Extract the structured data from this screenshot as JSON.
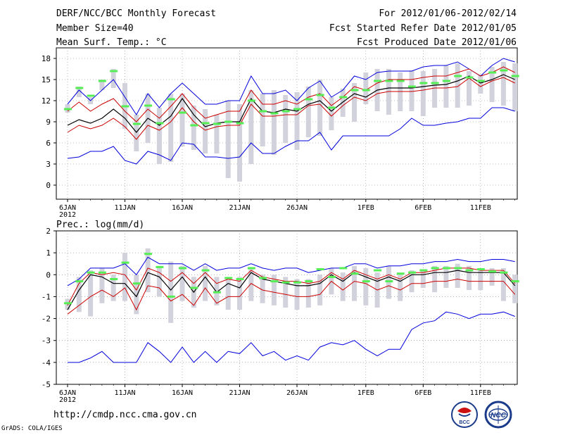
{
  "header": {
    "title": "DERF/NCC/BCC Monthly Forecast",
    "member_size": "Member Size=40",
    "variable": "Mean Surf. Temp.: °C",
    "period": "For 2012/01/06-2012/02/14",
    "fcst_started": "Fcst Started Refer Date 2012/01/05",
    "fcst_produced": "Fcst Produced Date 2012/01/06"
  },
  "footer": {
    "url": "http://cmdp.ncc.cma.gov.cn",
    "credit": "GrADS: COLA/IGES",
    "logo_left_text": "BCC",
    "logo_right_text": "NCC"
  },
  "colors": {
    "max_line": "#0000dd",
    "min_line": "#0000dd",
    "upper_line": "#cc0000",
    "lower_line": "#cc0000",
    "mean_line": "#000000",
    "obs_marker": "#55ee55",
    "box": "#d2d2dc",
    "grid": "#888888"
  },
  "chart_data": [
    {
      "id": "temperature",
      "type": "line",
      "title": "Mean Surf. Temp.: °C",
      "ylim": [
        -2,
        19.5
      ],
      "yticks": [
        0,
        3,
        6,
        9,
        12,
        15,
        18
      ],
      "xtick_labels": [
        "6JAN",
        "11JAN",
        "16JAN",
        "21JAN",
        "26JAN",
        "1FEB",
        "6FEB",
        "11FEB"
      ],
      "xtick_days": [
        0,
        5,
        10,
        15,
        20,
        26,
        31,
        36
      ],
      "year_label": "2012",
      "days": 40,
      "series": [
        {
          "name": "max",
          "values": [
            11.5,
            13.5,
            12,
            13.5,
            15,
            12.5,
            10,
            13,
            11,
            13,
            14.5,
            13,
            11.5,
            11.5,
            12,
            12,
            15.5,
            13,
            13,
            13.5,
            12,
            13.8,
            14.8,
            12.5,
            13.5,
            15.5,
            15,
            16,
            16.2,
            16.2,
            16.2,
            16.8,
            17,
            17,
            17.5,
            16.5,
            15.5,
            17,
            18,
            17.5
          ]
        },
        {
          "name": "upper",
          "values": [
            10.5,
            11.8,
            10.5,
            11.5,
            12.3,
            10.5,
            9,
            10.8,
            9.5,
            11.2,
            13,
            11,
            9.5,
            10,
            10.5,
            10.5,
            13.5,
            11.5,
            11.5,
            12,
            11.5,
            12.5,
            13,
            11.3,
            12.5,
            14,
            13.5,
            14.5,
            15,
            15,
            15,
            15.3,
            15.5,
            15.5,
            16,
            16.5,
            15.5,
            16,
            16.8,
            16
          ]
        },
        {
          "name": "mean",
          "values": [
            8.5,
            9.3,
            8.8,
            9.5,
            10.8,
            9.5,
            7.5,
            9.5,
            8.5,
            9.8,
            12.3,
            10,
            8.3,
            8.8,
            9,
            9,
            12.3,
            10.5,
            10.3,
            10.8,
            10.5,
            11.5,
            12,
            10.5,
            11.8,
            13,
            12.5,
            13.5,
            13.8,
            13.8,
            13.8,
            14,
            14.2,
            14.3,
            14.8,
            15.5,
            14.5,
            15,
            15.7,
            15
          ]
        },
        {
          "name": "lower",
          "values": [
            7.5,
            8.5,
            8,
            8.5,
            9.5,
            8.3,
            6.5,
            8.5,
            7.8,
            9,
            11,
            9,
            7.8,
            8.3,
            8.5,
            8.5,
            11.5,
            9.8,
            9.8,
            10,
            10,
            11.3,
            11.5,
            9.8,
            11.3,
            12.5,
            12,
            13,
            13.3,
            13.3,
            13.3,
            13.5,
            13.8,
            13.8,
            14,
            15.2,
            14,
            14.8,
            15.3,
            14.5
          ]
        },
        {
          "name": "min",
          "values": [
            3.8,
            4,
            4.8,
            4.8,
            5.5,
            3.5,
            3,
            4.8,
            4.3,
            3.5,
            6,
            5.8,
            4,
            4,
            3.8,
            4,
            6,
            4.5,
            4.5,
            5.5,
            6.3,
            6.3,
            7.5,
            5,
            7,
            7,
            7,
            7,
            7,
            8,
            9.5,
            8.5,
            8.5,
            8.8,
            9,
            9.5,
            9.5,
            11,
            11,
            10.5
          ]
        }
      ],
      "boxes": {
        "upper": [
          11.5,
          14,
          12.5,
          15,
          16.5,
          14.5,
          10,
          13,
          11,
          13,
          13,
          11.3,
          10.8,
          10,
          12,
          11.5,
          13.5,
          13,
          13.5,
          12.8,
          13.2,
          14,
          15,
          12.5,
          13.7,
          14.5,
          16,
          16.5,
          16.5,
          16,
          16.3,
          16.2,
          16.5,
          17,
          17.3,
          16.2,
          15.7,
          16.8,
          17.5,
          17.3
        ],
        "lower": [
          10.3,
          12.5,
          11.5,
          13.5,
          13.8,
          8,
          4.8,
          6,
          3,
          3.3,
          5.5,
          5,
          4.5,
          4.5,
          1,
          0.5,
          3,
          5.5,
          4.3,
          6,
          5,
          6.8,
          7,
          7.8,
          9.7,
          9,
          11.5,
          10.5,
          10,
          10.5,
          10.5,
          9.8,
          11,
          11,
          11,
          11.3,
          13,
          11.8,
          11.3,
          10.5
        ]
      },
      "observed": [
        10.8,
        13.8,
        12.7,
        14.8,
        16.2,
        11.2,
        8.7,
        11.3,
        8.8,
        12.2,
        10.3,
        8.5,
        8.8,
        8.7,
        9,
        8.8,
        12,
        10.5,
        10.2,
        10.5,
        10.8,
        12.2,
        12.8,
        11,
        12.5,
        13.5,
        13.5,
        14.8,
        14.8,
        14.8,
        14,
        14.5,
        14.5,
        14.8,
        15.5,
        15.3,
        14.8,
        16,
        16.3,
        15.5
      ]
    },
    {
      "id": "precipitation",
      "type": "line",
      "title": "Prec.: log(mm/d)",
      "ylim": [
        -5,
        2
      ],
      "yticks": [
        -5,
        -4,
        -3,
        -2,
        -1,
        0,
        1,
        2
      ],
      "xtick_labels": [
        "6JAN",
        "11JAN",
        "16JAN",
        "21JAN",
        "26JAN",
        "1FEB",
        "6FEB",
        "11FEB"
      ],
      "xtick_days": [
        0,
        5,
        10,
        15,
        20,
        26,
        31,
        36
      ],
      "year_label": "2012",
      "days": 40,
      "series": [
        {
          "name": "max",
          "values": [
            -0.5,
            -0.2,
            0.3,
            0.3,
            0.3,
            0.5,
            0,
            0.8,
            0.5,
            0.5,
            0.5,
            0.2,
            0.5,
            0.2,
            0.3,
            0.3,
            0.5,
            0.3,
            0.2,
            0.3,
            0.3,
            0.1,
            0.2,
            0.3,
            0.3,
            0.5,
            0.5,
            0.3,
            0.4,
            0.4,
            0.5,
            0.5,
            0.6,
            0.6,
            0.7,
            0.6,
            0.6,
            0.7,
            0.7,
            0.6
          ]
        },
        {
          "name": "upper",
          "values": [
            -1.4,
            -0.4,
            0.1,
            0,
            0.1,
            0,
            -0.7,
            0.3,
            0.1,
            -0.3,
            0.1,
            -0.4,
            0.1,
            -0.4,
            -0.2,
            -0.3,
            0.2,
            -0.1,
            -0.2,
            -0.3,
            -0.3,
            -0.4,
            -0.3,
            0.1,
            -0.2,
            0.2,
            0,
            -0.2,
            0,
            -0.2,
            0.1,
            0.1,
            0.2,
            0.3,
            0.3,
            0.3,
            0.2,
            0.2,
            0.2,
            -0.4
          ]
        },
        {
          "name": "mean",
          "values": [
            -1.6,
            -0.7,
            0,
            -0.1,
            -0.4,
            -0.4,
            -1,
            0.1,
            -0.1,
            -0.7,
            -0.1,
            -0.8,
            -0.1,
            -0.8,
            -0.4,
            -0.6,
            0.1,
            -0.2,
            -0.3,
            -0.4,
            -0.5,
            -0.5,
            -0.4,
            0,
            -0.3,
            0.1,
            -0.1,
            -0.3,
            -0.1,
            -0.3,
            0,
            0,
            0.1,
            0.1,
            0.2,
            0.1,
            0.1,
            0.1,
            0.1,
            -0.5
          ]
        },
        {
          "name": "lower",
          "values": [
            -1.8,
            -1.4,
            -1,
            -0.7,
            -1,
            -0.6,
            -1.6,
            -0.5,
            -0.6,
            -1.2,
            -0.9,
            -1.4,
            -0.6,
            -1.3,
            -1,
            -1,
            -0.4,
            -0.7,
            -0.8,
            -0.9,
            -1,
            -1,
            -0.9,
            -0.3,
            -0.7,
            -0.3,
            -0.4,
            -0.7,
            -0.5,
            -0.7,
            -0.4,
            -0.4,
            -0.3,
            -0.3,
            -0.2,
            -0.3,
            -0.3,
            -0.3,
            -0.3,
            -0.9
          ]
        },
        {
          "name": "min",
          "values": [
            -4,
            -4,
            -3.8,
            -3.5,
            -4,
            -4,
            -4,
            -3.1,
            -3.5,
            -4,
            -3.3,
            -4,
            -3.5,
            -4,
            -3.5,
            -3.6,
            -3.1,
            -3.7,
            -3.5,
            -3.9,
            -3.7,
            -3.9,
            -3.3,
            -3.1,
            -3.2,
            -3,
            -3.4,
            -3.7,
            -3.4,
            -3.4,
            -2.5,
            -2.2,
            -2.1,
            -1.7,
            -1.8,
            -2,
            -1.8,
            -1.8,
            -1.7,
            -1.9
          ]
        }
      ],
      "boxes": {
        "upper": [
          -1.1,
          -0.1,
          0.2,
          0.3,
          0,
          1,
          0,
          1.2,
          0.4,
          0.6,
          0.4,
          -0.1,
          0.4,
          -0.1,
          -0.1,
          -0.1,
          0.3,
          0,
          0,
          -0.1,
          -0.2,
          -0.2,
          0,
          0.3,
          0.1,
          0.4,
          0.3,
          0.1,
          0.4,
          0,
          0.2,
          0.2,
          0.4,
          0.4,
          0.5,
          0.4,
          0.3,
          0.3,
          0.3,
          0
        ],
        "lower": [
          -1.6,
          -1.7,
          -1.9,
          -1.3,
          -1.2,
          -1.2,
          -1.8,
          -0.8,
          -1,
          -2.2,
          -1.2,
          -1.5,
          -1.2,
          -1.4,
          -1.6,
          -1.6,
          -1.2,
          -1.3,
          -1.4,
          -1.5,
          -1.6,
          -1.5,
          -1.4,
          -0.9,
          -1.2,
          -1.2,
          -1.4,
          -1.5,
          -1.1,
          -1.2,
          -0.8,
          -0.6,
          -0.8,
          -0.6,
          -0.6,
          -0.7,
          -0.7,
          -0.5,
          -1.2,
          -1.3
        ]
      },
      "observed": [
        -1.3,
        -0.3,
        0.1,
        0.1,
        -0.2,
        0.55,
        -0.4,
        0.95,
        0.35,
        -1,
        0.3,
        -0.6,
        0.2,
        -0.8,
        -0.15,
        -0.2,
        0.3,
        -0.15,
        -0.3,
        -0.35,
        -0.35,
        -0.3,
        0.25,
        -0.1,
        0.3,
        0.05,
        -0.3,
        0.2,
        -0.3,
        0.05,
        0.1,
        0.2,
        0.3,
        0.3,
        0.3,
        0.2,
        0.25,
        0.15,
        0.1,
        -0.3
      ]
    }
  ]
}
